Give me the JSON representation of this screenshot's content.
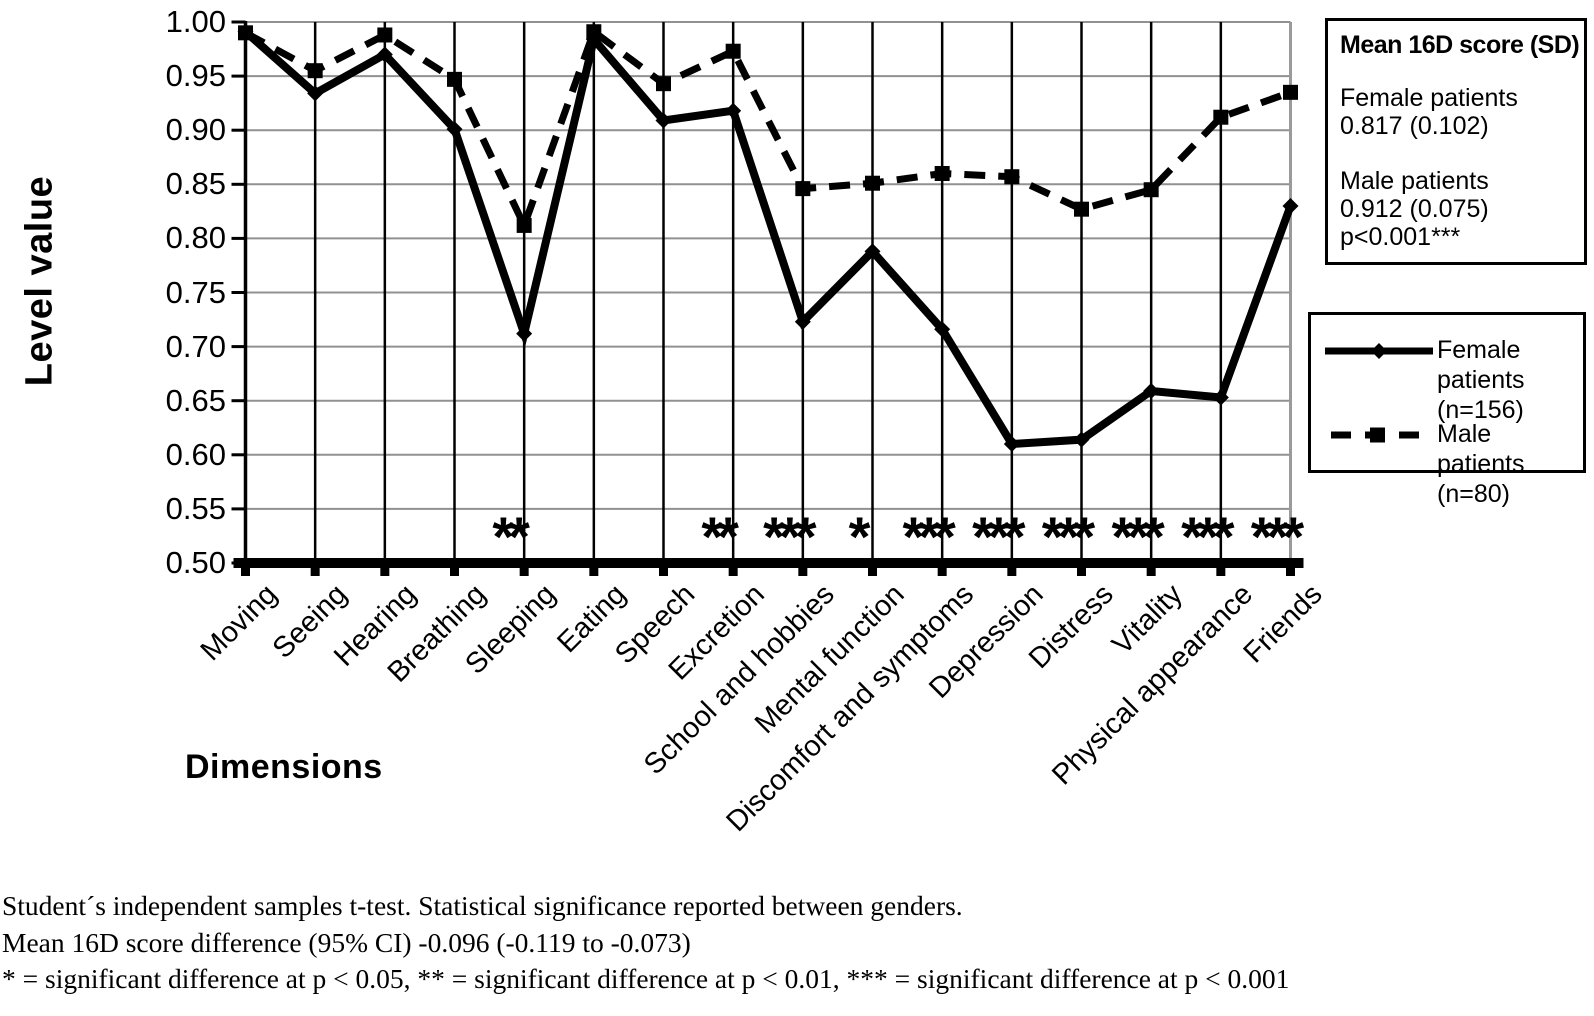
{
  "chart_data": {
    "type": "line",
    "title": "",
    "xlabel": "Dimensions",
    "ylabel": "Level value",
    "ylim": [
      0.5,
      1.0
    ],
    "ytick_step": 0.05,
    "ytick_labels": [
      "1.00",
      "0.95",
      "0.90",
      "0.85",
      "0.80",
      "0.75",
      "0.70",
      "0.65",
      "0.60",
      "0.55",
      "0.50"
    ],
    "grid": true,
    "legend_position": "right",
    "categories": [
      "Moving",
      "Seeing",
      "Hearing",
      "Breathing",
      "Sleeping",
      "Eating",
      "Speech",
      "Excretion",
      "School and hobbies",
      "Mental function",
      "Discomfort and symptoms",
      "Depression",
      "Distress",
      "Vitality",
      "Physical appearance",
      "Friends"
    ],
    "series": [
      {
        "name": "Female patients",
        "n": "(n=156)",
        "line_style": "solid",
        "marker": "diamond",
        "color": "#000000",
        "values": [
          0.991,
          0.934,
          0.97,
          0.901,
          0.712,
          0.984,
          0.909,
          0.918,
          0.723,
          0.788,
          0.716,
          0.61,
          0.614,
          0.659,
          0.653,
          0.83
        ]
      },
      {
        "name": "Male patients",
        "n": "(n=80)",
        "line_style": "dashed",
        "marker": "square",
        "color": "#000000",
        "values": [
          0.99,
          0.955,
          0.988,
          0.947,
          0.812,
          0.991,
          0.943,
          0.973,
          0.846,
          0.851,
          0.86,
          0.857,
          0.827,
          0.845,
          0.912,
          0.935
        ]
      }
    ],
    "significance_by_category": [
      "",
      "",
      "",
      "",
      "**",
      "",
      "",
      "**",
      "***",
      "*",
      "***",
      "***",
      "***",
      "***",
      "***",
      "***"
    ]
  },
  "info_box": {
    "title": "Mean 16D score (SD)",
    "female_label": "Female patients",
    "female_value": "0.817 (0.102)",
    "male_label": "Male patients",
    "male_value": "0.912 (0.075)",
    "p_value": "p<0.001***"
  },
  "legend": {
    "items": [
      {
        "label": "Female patients",
        "sub": "(n=156)"
      },
      {
        "label": "Male patients",
        "sub": "(n=80)"
      }
    ]
  },
  "footnotes": [
    "Student´s independent samples t-test. Statistical significance reported between genders.",
    "Mean 16D score difference (95% CI) -0.096 (-0.119 to -0.073)",
    "* = significant difference at p < 0.05, ** = significant difference at p < 0.01, *** = significant difference at p < 0.001"
  ],
  "colors": {
    "line": "#000000",
    "horizontal_grid": "#919191",
    "vertical_grid": "#000000",
    "background": "#ffffff"
  }
}
